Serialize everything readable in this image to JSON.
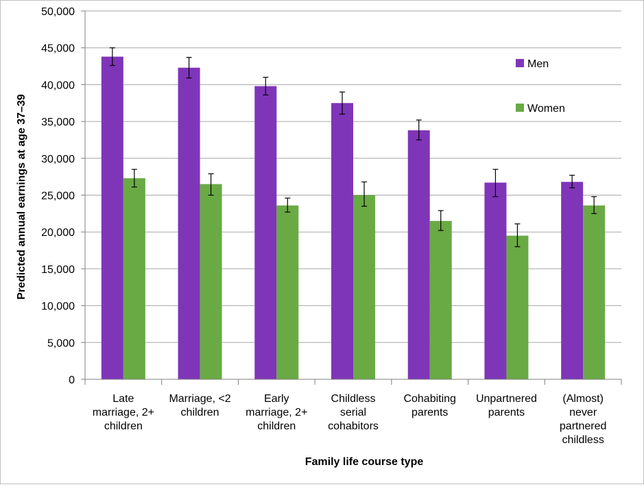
{
  "chart_data": {
    "type": "bar",
    "xlabel": "Family life course type",
    "ylabel": "Predicted annual earnings at age 37–39",
    "ylim": [
      0,
      50000
    ],
    "yticks": [
      "0",
      "5,000",
      "10,000",
      "15,000",
      "20,000",
      "25,000",
      "30,000",
      "35,000",
      "40,000",
      "45,000",
      "50,000"
    ],
    "grid": true,
    "legend_position": "top-right",
    "categories": [
      [
        "Late",
        "marriage, 2+",
        "children"
      ],
      [
        "Marriage, <2",
        "children"
      ],
      [
        "Early",
        "marriage, 2+",
        "children"
      ],
      [
        "Childless",
        "serial",
        "cohabitors"
      ],
      [
        "Cohabiting",
        "parents"
      ],
      [
        "Unpartnered",
        "parents"
      ],
      [
        "(Almost)",
        "never",
        "partnered",
        "childless"
      ]
    ],
    "series": [
      {
        "name": "Men",
        "color": "#7f35b8",
        "values": [
          43800,
          42300,
          39800,
          37500,
          33800,
          26700,
          26800
        ],
        "error_low": [
          42600,
          40900,
          38600,
          36000,
          32500,
          24800,
          26000
        ],
        "error_high": [
          45000,
          43700,
          41000,
          39000,
          35200,
          28500,
          27700
        ]
      },
      {
        "name": "Women",
        "color": "#6aaa45",
        "values": [
          27300,
          26500,
          23600,
          25000,
          21500,
          19500,
          23600
        ],
        "error_low": [
          26100,
          25000,
          22700,
          23500,
          20200,
          18000,
          22500
        ],
        "error_high": [
          28500,
          27900,
          24600,
          26800,
          22900,
          21100,
          24800
        ]
      }
    ]
  }
}
